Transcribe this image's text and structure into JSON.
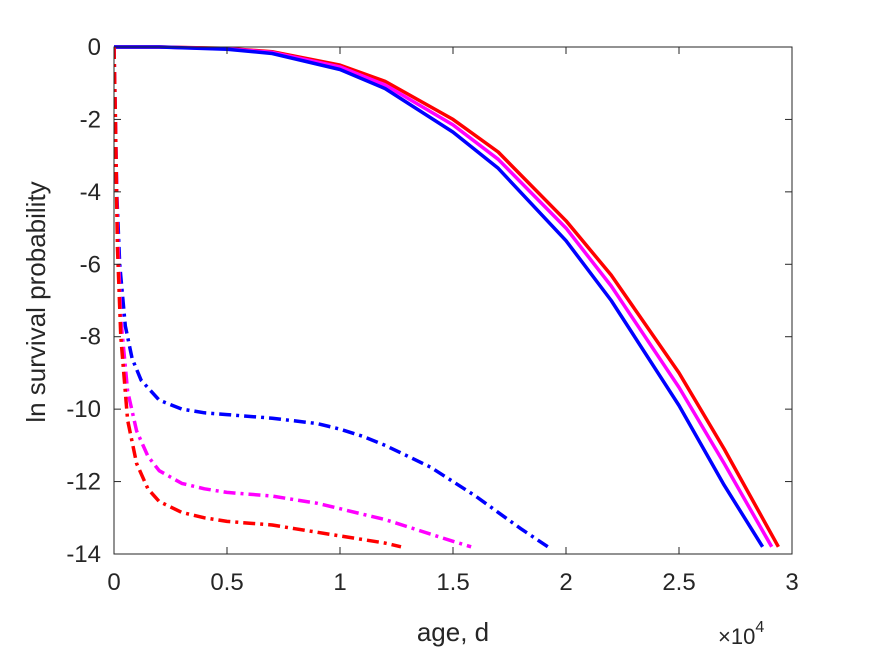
{
  "chart_data": {
    "type": "line",
    "xlabel": "age, d",
    "ylabel": "ln survival probability",
    "x_exponent_label": "×10",
    "x_exponent_power": "4",
    "xlim": [
      0,
      30000
    ],
    "ylim": [
      -14,
      0
    ],
    "x_ticks": [
      0,
      5000,
      10000,
      15000,
      20000,
      25000,
      30000
    ],
    "x_tick_labels": [
      "0",
      "0.5",
      "1",
      "1.5",
      "2",
      "2.5",
      "3"
    ],
    "y_ticks": [
      0,
      -2,
      -4,
      -6,
      -8,
      -10,
      -12,
      -14
    ],
    "y_tick_labels": [
      "0",
      "-2",
      "-4",
      "-6",
      "-8",
      "-10",
      "-12",
      "-14"
    ],
    "grid": false,
    "series": [
      {
        "color": "#ff0000",
        "style": "solid",
        "x": [
          0,
          2000,
          5000,
          7000,
          10000,
          12000,
          15000,
          17000,
          20000,
          22000,
          25000,
          27000,
          29400
        ],
        "y": [
          0,
          0,
          -0.04,
          -0.13,
          -0.5,
          -0.95,
          -2.0,
          -2.9,
          -4.8,
          -6.3,
          -9.0,
          -11.1,
          -13.8
        ]
      },
      {
        "color": "#ff00ff",
        "style": "solid",
        "x": [
          0,
          2000,
          5000,
          7000,
          10000,
          12000,
          15000,
          17000,
          20000,
          22000,
          25000,
          27000,
          29100
        ],
        "y": [
          0,
          0,
          -0.05,
          -0.15,
          -0.55,
          -1.05,
          -2.15,
          -3.1,
          -5.0,
          -6.6,
          -9.4,
          -11.5,
          -13.8
        ]
      },
      {
        "color": "#0000ff",
        "style": "solid",
        "x": [
          0,
          2000,
          5000,
          7000,
          10000,
          12000,
          15000,
          17000,
          20000,
          22000,
          25000,
          27000,
          28700
        ],
        "y": [
          0,
          0,
          -0.06,
          -0.18,
          -0.62,
          -1.15,
          -2.35,
          -3.35,
          -5.35,
          -7.0,
          -9.9,
          -12.1,
          -13.8
        ]
      },
      {
        "color": "#0000ff",
        "style": "dashdot",
        "x": [
          0,
          60,
          120,
          250,
          500,
          800,
          1200,
          2000,
          3000,
          4000,
          5000,
          7000,
          9000,
          10000,
          11000,
          12000,
          13000,
          14000,
          15000,
          16000,
          17000,
          18000,
          19200
        ],
        "y": [
          0,
          -2,
          -4,
          -6,
          -7.7,
          -8.6,
          -9.2,
          -9.75,
          -10.0,
          -10.1,
          -10.15,
          -10.25,
          -10.4,
          -10.55,
          -10.75,
          -11.0,
          -11.3,
          -11.6,
          -12.0,
          -12.4,
          -12.85,
          -13.3,
          -13.8
        ]
      },
      {
        "color": "#ff00ff",
        "style": "dashdot",
        "x": [
          0,
          60,
          150,
          300,
          600,
          1000,
          1500,
          2000,
          3000,
          4000,
          5000,
          6000,
          7000,
          8000,
          9000,
          10000,
          11000,
          12000,
          13000,
          14000,
          15000,
          15800
        ],
        "y": [
          0,
          -2,
          -5,
          -7.5,
          -9.5,
          -10.6,
          -11.3,
          -11.7,
          -12.05,
          -12.2,
          -12.3,
          -12.35,
          -12.4,
          -12.5,
          -12.6,
          -12.75,
          -12.9,
          -13.05,
          -13.25,
          -13.45,
          -13.65,
          -13.8
        ]
      },
      {
        "color": "#ff0000",
        "style": "dashdot",
        "x": [
          0,
          60,
          150,
          300,
          600,
          1000,
          1500,
          2000,
          3000,
          4000,
          5000,
          6000,
          7000,
          8000,
          9000,
          10000,
          11000,
          12000,
          12700
        ],
        "y": [
          0,
          -2,
          -5.5,
          -8,
          -10.3,
          -11.5,
          -12.2,
          -12.55,
          -12.85,
          -13.0,
          -13.1,
          -13.15,
          -13.2,
          -13.3,
          -13.4,
          -13.5,
          -13.6,
          -13.7,
          -13.8
        ]
      }
    ]
  }
}
